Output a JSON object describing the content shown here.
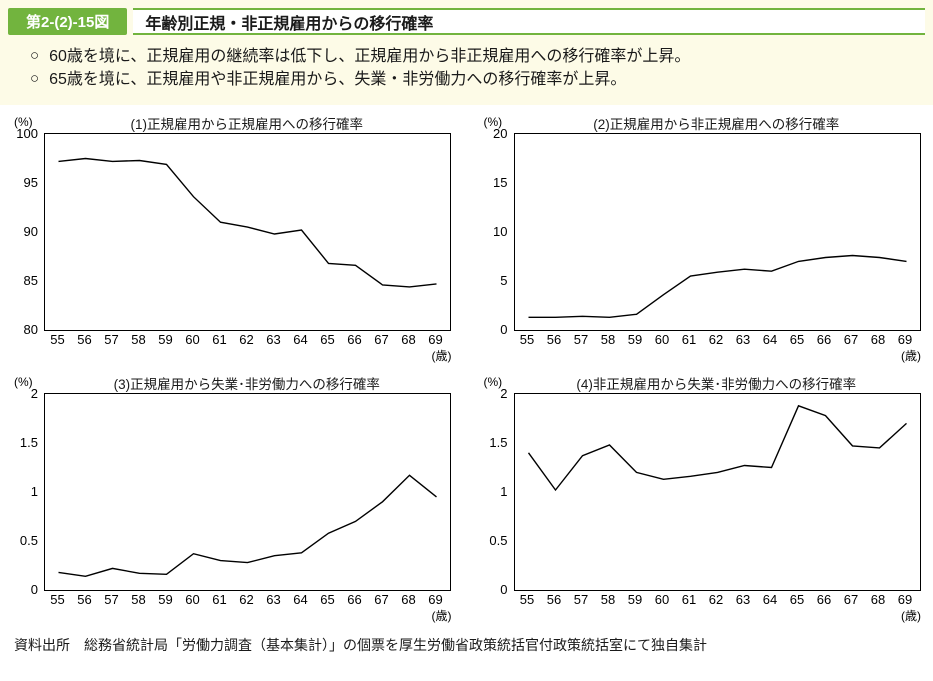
{
  "header": {
    "figure_label": "第2-(2)-15図",
    "title": "年齢別正規・非正規雇用からの移行確率"
  },
  "bullets": [
    {
      "marker": "○",
      "text": "60歳を境に、正規雇用の継続率は低下し、正規雇用から非正規雇用への移行確率が上昇。"
    },
    {
      "marker": "○",
      "text": "65歳を境に、正規雇用や非正規雇用から、失業・非労働力への移行確率が上昇。"
    }
  ],
  "source": "資料出所　総務省統計局「労働力調査（基本集計）」の個票を厚生労働省政策統括官付政策統括室にて独自集計",
  "colors": {
    "header_green": "#72b43e",
    "cream_bg": "#fdfbe7",
    "line": "#000000"
  },
  "chart_data": [
    {
      "type": "line",
      "title": "(1)正規雇用から正規雇用への移行確率",
      "unit_label": "(%)",
      "x_unit_label": "(歳)",
      "x": [
        55,
        56,
        57,
        58,
        59,
        60,
        61,
        62,
        63,
        64,
        65,
        66,
        67,
        68,
        69
      ],
      "values": [
        97.2,
        97.5,
        97.2,
        97.3,
        96.9,
        93.6,
        91.0,
        90.5,
        89.8,
        90.2,
        86.8,
        86.6,
        84.6,
        84.4,
        84.7
      ],
      "ylim": [
        80,
        100
      ],
      "yticks": [
        80,
        85,
        90,
        95,
        100
      ],
      "grid": false,
      "legend": "none"
    },
    {
      "type": "line",
      "title": "(2)正規雇用から非正規雇用への移行確率",
      "unit_label": "(%)",
      "x_unit_label": "(歳)",
      "x": [
        55,
        56,
        57,
        58,
        59,
        60,
        61,
        62,
        63,
        64,
        65,
        66,
        67,
        68,
        69
      ],
      "values": [
        1.3,
        1.3,
        1.4,
        1.3,
        1.6,
        3.6,
        5.5,
        5.9,
        6.2,
        6.0,
        7.0,
        7.4,
        7.6,
        7.4,
        7.0
      ],
      "ylim": [
        0,
        20
      ],
      "yticks": [
        0,
        5,
        10,
        15,
        20
      ],
      "grid": false,
      "legend": "none"
    },
    {
      "type": "line",
      "title": "(3)正規雇用から失業･非労働力への移行確率",
      "unit_label": "(%)",
      "x_unit_label": "(歳)",
      "x": [
        55,
        56,
        57,
        58,
        59,
        60,
        61,
        62,
        63,
        64,
        65,
        66,
        67,
        68,
        69
      ],
      "values": [
        0.18,
        0.14,
        0.22,
        0.17,
        0.16,
        0.37,
        0.3,
        0.28,
        0.35,
        0.38,
        0.58,
        0.7,
        0.9,
        1.17,
        0.95
      ],
      "ylim": [
        0,
        2
      ],
      "yticks": [
        0,
        0.5,
        1,
        1.5,
        2
      ],
      "grid": false,
      "legend": "none"
    },
    {
      "type": "line",
      "title": "(4)非正規雇用から失業･非労働力への移行確率",
      "unit_label": "(%)",
      "x_unit_label": "(歳)",
      "x": [
        55,
        56,
        57,
        58,
        59,
        60,
        61,
        62,
        63,
        64,
        65,
        66,
        67,
        68,
        69
      ],
      "values": [
        1.4,
        1.02,
        1.37,
        1.48,
        1.2,
        1.13,
        1.16,
        1.2,
        1.27,
        1.25,
        1.88,
        1.78,
        1.47,
        1.45,
        1.7
      ],
      "ylim": [
        0,
        2
      ],
      "yticks": [
        0,
        0.5,
        1,
        1.5,
        2
      ],
      "grid": false,
      "legend": "none"
    }
  ]
}
